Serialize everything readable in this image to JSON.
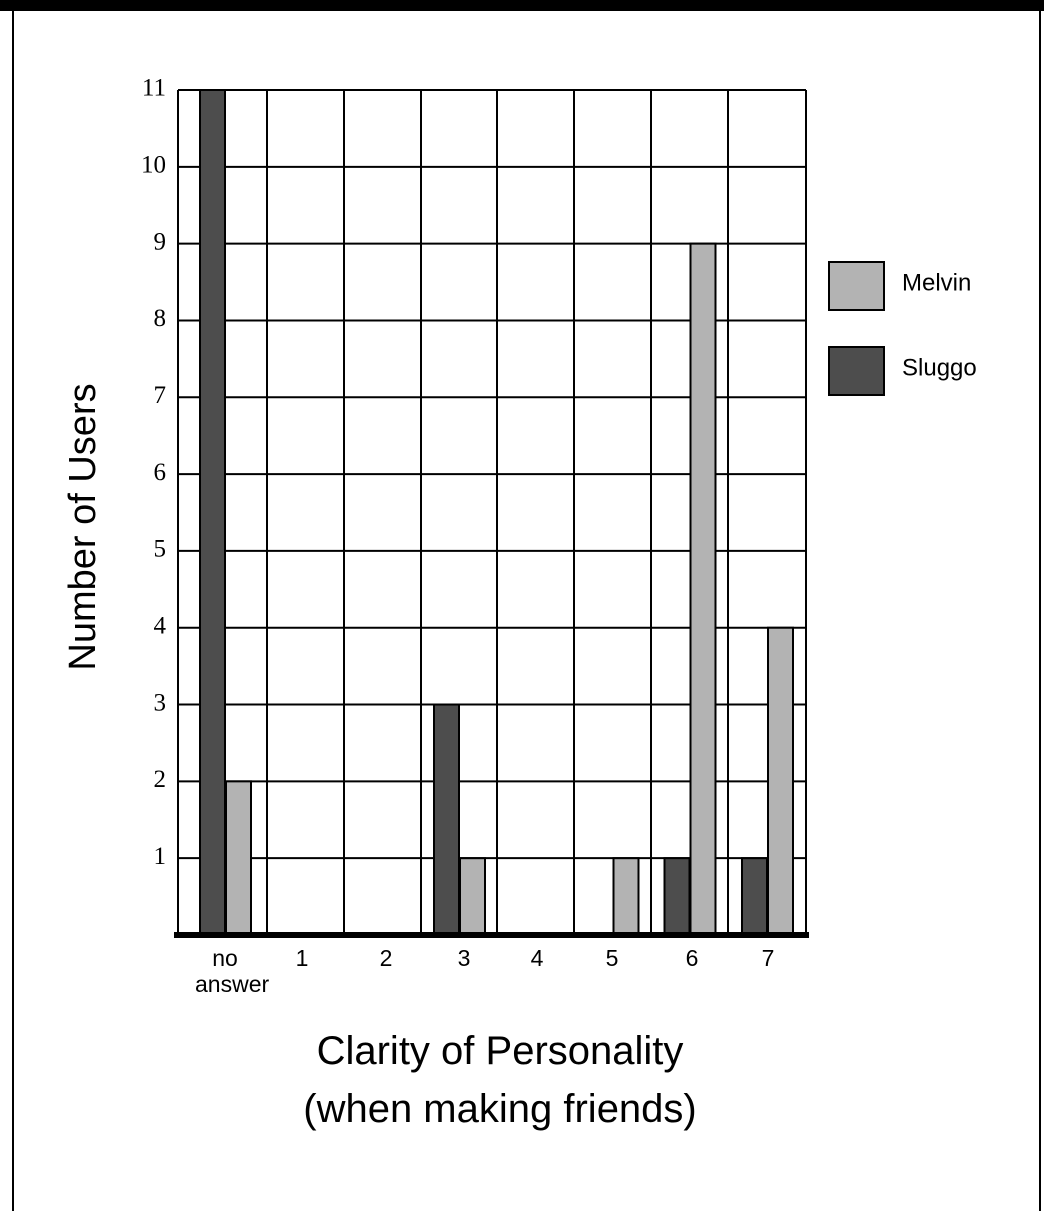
{
  "chart_data": {
    "type": "bar",
    "ylabel": "Number of Users",
    "xlabel": [
      "Clarity of Personality",
      "(when making friends)"
    ],
    "categories": [
      "no answer",
      "1",
      "2",
      "3",
      "4",
      "5",
      "6",
      "7"
    ],
    "series": [
      {
        "name": "Melvin",
        "color": "#b3b3b3",
        "values": [
          2,
          0,
          0,
          1,
          0,
          1,
          9,
          4
        ]
      },
      {
        "name": "Sluggo",
        "color": "#4d4d4d",
        "values": [
          11,
          0,
          0,
          3,
          0,
          0,
          1,
          1
        ]
      }
    ],
    "ylim": [
      0,
      11
    ],
    "yticks": [
      1,
      2,
      3,
      4,
      5,
      6,
      7,
      8,
      9,
      10,
      11
    ],
    "grid": true,
    "legend": "right"
  }
}
